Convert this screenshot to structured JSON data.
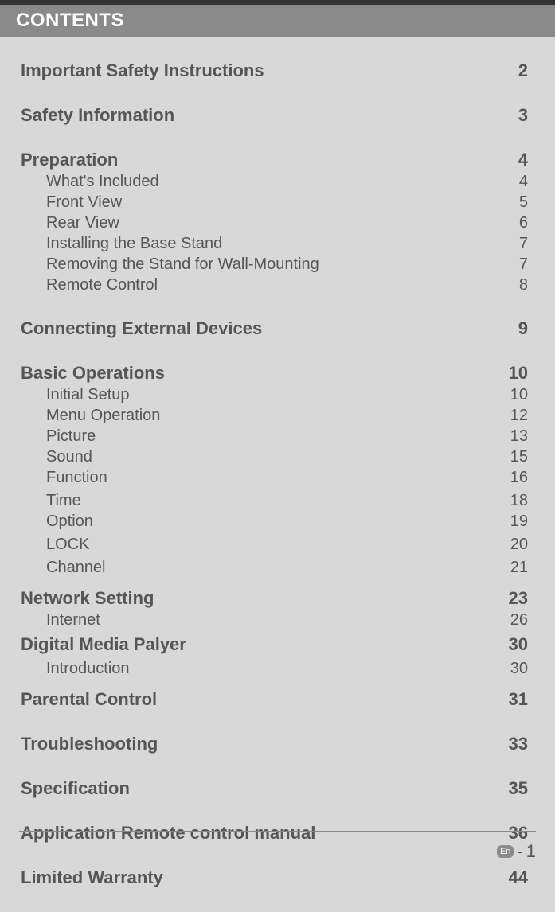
{
  "header": {
    "title": "CONTENTS"
  },
  "toc": {
    "sections": [
      {
        "type": "section",
        "label": "Important Safety Instructions",
        "page": "2",
        "gap_after": "large"
      },
      {
        "type": "section",
        "label": "Safety Information",
        "page": "3",
        "gap_after": "large"
      },
      {
        "type": "section",
        "label": "Preparation",
        "page": "4",
        "gap_after": "tiny"
      },
      {
        "type": "sub",
        "label": "What's Included",
        "page": "4",
        "gap_after": "tiny"
      },
      {
        "type": "sub",
        "label": "Front View",
        "page": "5",
        "gap_after": "tiny"
      },
      {
        "type": "sub",
        "label": "Rear View",
        "page": "6",
        "gap_after": "tiny"
      },
      {
        "type": "sub",
        "label": "Installing the Base Stand",
        "page": "7",
        "gap_after": "tiny"
      },
      {
        "type": "sub",
        "label": "Removing the Stand for Wall-Mounting",
        "page": "7",
        "gap_after": "tiny"
      },
      {
        "type": "sub",
        "label": "Remote Control",
        "page": "8",
        "gap_after": "large"
      },
      {
        "type": "section",
        "label": "Connecting External Devices",
        "page": "9",
        "gap_after": "large"
      },
      {
        "type": "section",
        "label": "Basic Operations",
        "page": "10",
        "gap_after": "tiny"
      },
      {
        "type": "sub",
        "label": "Initial Setup",
        "page": "10",
        "gap_after": "tiny"
      },
      {
        "type": "sub",
        "label": "Menu Operation",
        "page": "12",
        "gap_after": "tiny"
      },
      {
        "type": "sub",
        "label": "Picture",
        "page": "13",
        "gap_after": "tiny"
      },
      {
        "type": "sub",
        "label": "Sound",
        "page": "15",
        "gap_after": "tiny"
      },
      {
        "type": "sub",
        "label": "Function",
        "page": "16",
        "gap_after": "small"
      },
      {
        "type": "sub",
        "label": "Time",
        "page": "18",
        "gap_after": "tiny"
      },
      {
        "type": "sub",
        "label": "Option",
        "page": "19",
        "gap_after": "small"
      },
      {
        "type": "sub",
        "label": "LOCK",
        "page": "20",
        "gap_after": "small"
      },
      {
        "type": "sub",
        "label": "Channel",
        "page": "21",
        "gap_after": "med"
      },
      {
        "type": "section",
        "label": "Network Setting",
        "page": "23",
        "gap_after": "tiny"
      },
      {
        "type": "sub",
        "label": "Internet",
        "page": "26",
        "gap_after": "small"
      },
      {
        "type": "section",
        "label": "Digital Media Palyer",
        "page": "30",
        "gap_after": "small"
      },
      {
        "type": "sub",
        "label": "Introduction",
        "page": "30",
        "gap_after": "med"
      },
      {
        "type": "section",
        "label": "Parental Control",
        "page": "31",
        "gap_after": "large"
      },
      {
        "type": "section",
        "label": "Troubleshooting",
        "page": "33",
        "gap_after": "large"
      },
      {
        "type": "section",
        "label": "Specification",
        "page": "35",
        "gap_after": "large"
      },
      {
        "type": "section",
        "label": "Application Remote control manual",
        "page": "36",
        "gap_after": "large"
      },
      {
        "type": "section",
        "label": "Limited Warranty",
        "page": "44",
        "gap_after": "large"
      }
    ]
  },
  "footer": {
    "lang": "En",
    "sep": "-",
    "page": "1"
  }
}
